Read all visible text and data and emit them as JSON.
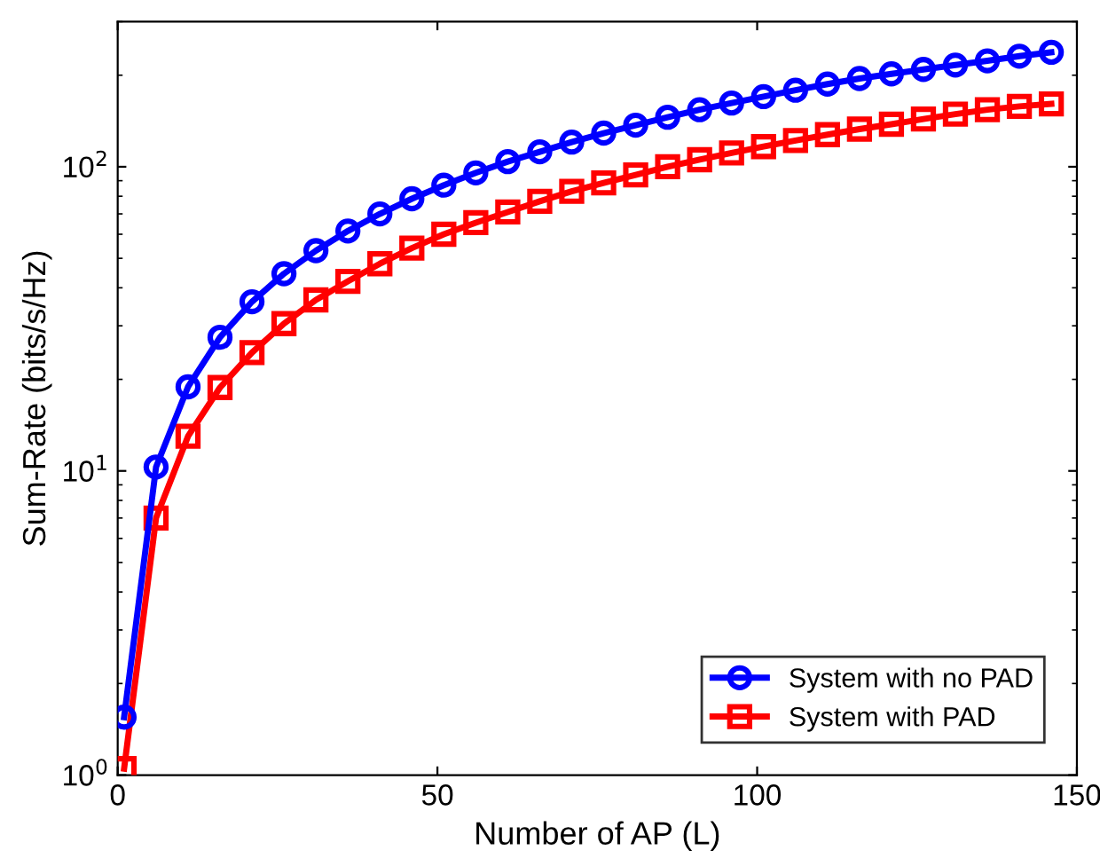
{
  "chart_data": {
    "type": "line",
    "xlabel": "Number of AP (L)",
    "ylabel": "Sum-Rate (bits/s/Hz)",
    "x": [
      1,
      6,
      11,
      16,
      21,
      26,
      31,
      36,
      41,
      46,
      51,
      56,
      61,
      66,
      71,
      76,
      81,
      86,
      91,
      96,
      101,
      106,
      111,
      116,
      121,
      126,
      131,
      136,
      141,
      146
    ],
    "series": [
      {
        "name": "System with no PAD",
        "color": "#0000ff",
        "marker": "circle",
        "values": [
          1.55,
          10.3,
          18.9,
          27.5,
          36,
          44.5,
          53,
          61.5,
          70,
          78.5,
          87,
          95.5,
          104,
          112,
          120.5,
          129,
          137,
          145.5,
          154,
          162,
          170,
          178.5,
          187,
          195,
          202,
          209,
          216,
          223,
          231,
          238
        ]
      },
      {
        "name": "System with PAD",
        "color": "#ff0000",
        "marker": "square",
        "values": [
          1.05,
          7,
          13,
          18.8,
          24.5,
          30.5,
          36.5,
          42,
          48,
          54,
          60,
          65.5,
          71,
          77,
          83,
          88.5,
          94,
          100,
          105.5,
          111,
          116.5,
          122,
          127.5,
          133,
          138,
          143.5,
          149,
          154,
          158,
          161
        ]
      }
    ],
    "log": "y",
    "xlim": [
      0,
      150
    ],
    "xticks": [
      0,
      50,
      100,
      150
    ],
    "ylim": [
      1,
      300
    ],
    "yticks": [
      {
        "value": 1,
        "label": "10$^{0}$"
      },
      {
        "value": 10,
        "label": "10$^{1}$"
      },
      {
        "value": 100,
        "label": "10$^{2}$"
      }
    ],
    "legend": "bottom right",
    "grid": false,
    "line_style": "solid"
  }
}
